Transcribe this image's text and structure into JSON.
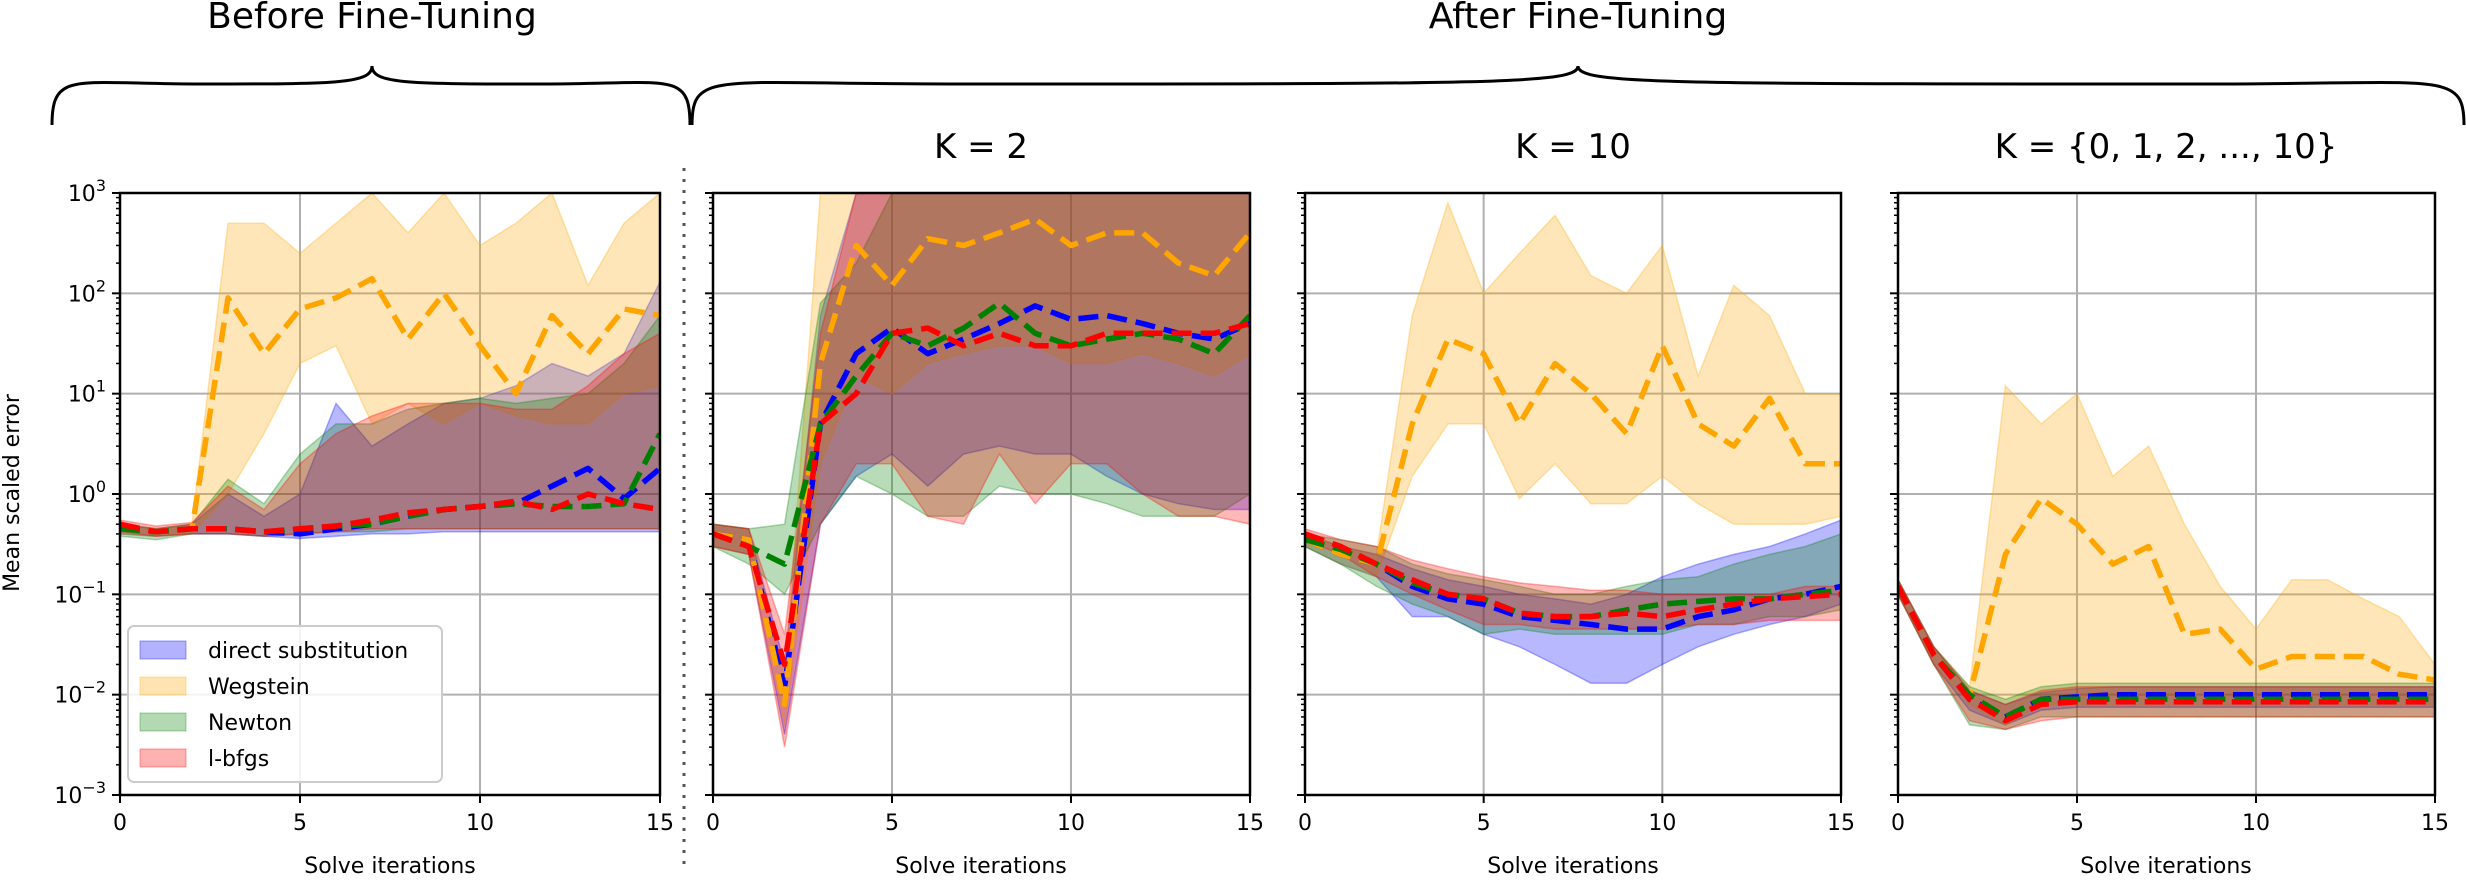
{
  "groups": {
    "before_label": "Before Fine-Tuning",
    "after_label": "After Fine-Tuning"
  },
  "legend": [
    {
      "key": "ds",
      "label": "direct substitution"
    },
    {
      "key": "wg",
      "label": "Wegstein"
    },
    {
      "key": "nt",
      "label": "Newton"
    },
    {
      "key": "lb",
      "label": "l-bfgs"
    }
  ],
  "colors": {
    "ds": "#0000ff",
    "wg": "#ffa500",
    "nt": "#008000",
    "lb": "#ff0000"
  },
  "chart_data": [
    {
      "type": "line",
      "title": "",
      "xlabel": "Solve iterations",
      "ylabel": "Mean scaled error",
      "yscale": "log",
      "xlim": [
        0,
        15
      ],
      "ylim": [
        0.001,
        1000
      ],
      "xticks": [
        "0",
        "5",
        "10",
        "15"
      ],
      "yticks": [
        "10⁻³",
        "10⁻²",
        "10⁻¹",
        "10⁰",
        "10¹",
        "10²",
        "10³"
      ],
      "x": [
        0,
        1,
        2,
        3,
        4,
        5,
        6,
        7,
        8,
        9,
        10,
        11,
        12,
        13,
        14,
        15
      ],
      "series": [
        {
          "name": "direct substitution",
          "key": "ds",
          "mean": [
            0.45,
            0.42,
            0.45,
            0.45,
            0.42,
            0.4,
            0.45,
            0.5,
            0.6,
            0.7,
            0.75,
            0.8,
            1.2,
            1.8,
            0.9,
            1.8
          ],
          "lower": [
            0.4,
            0.38,
            0.4,
            0.4,
            0.38,
            0.36,
            0.38,
            0.4,
            0.4,
            0.42,
            0.42,
            0.42,
            0.42,
            0.42,
            0.42,
            0.42
          ],
          "upper": [
            0.5,
            0.45,
            0.5,
            1.0,
            0.6,
            1.0,
            8.0,
            3.0,
            5.0,
            8.0,
            9.0,
            12.0,
            20.0,
            15.0,
            25.0,
            130.0
          ]
        },
        {
          "name": "Wegstein",
          "key": "wg",
          "mean": [
            0.45,
            0.42,
            0.45,
            90,
            25,
            70,
            90,
            140,
            35,
            100,
            30,
            10,
            60,
            25,
            70,
            60
          ],
          "lower": [
            0.4,
            0.38,
            0.4,
            1.0,
            4.0,
            20,
            30,
            5,
            8,
            5,
            8,
            6,
            5,
            5,
            10,
            12
          ],
          "upper": [
            0.5,
            0.45,
            0.5,
            500,
            500,
            250,
            500,
            1000,
            400,
            1000,
            300,
            500,
            1000,
            120,
            500,
            1000
          ]
        },
        {
          "name": "Newton",
          "key": "nt",
          "mean": [
            0.45,
            0.42,
            0.45,
            0.45,
            0.42,
            0.45,
            0.48,
            0.5,
            0.6,
            0.7,
            0.75,
            0.8,
            0.75,
            0.75,
            0.8,
            4.0
          ],
          "lower": [
            0.38,
            0.35,
            0.4,
            0.4,
            0.38,
            0.4,
            0.42,
            0.42,
            0.45,
            0.45,
            0.45,
            0.45,
            0.45,
            0.45,
            0.45,
            0.45
          ],
          "upper": [
            0.5,
            0.45,
            0.5,
            1.4,
            0.8,
            2.5,
            5.0,
            5.0,
            7.0,
            8.0,
            9.0,
            8.0,
            9.0,
            10,
            20,
            60
          ]
        },
        {
          "name": "l-bfgs",
          "key": "lb",
          "mean": [
            0.5,
            0.42,
            0.45,
            0.45,
            0.42,
            0.45,
            0.48,
            0.55,
            0.65,
            0.7,
            0.75,
            0.85,
            0.7,
            1.0,
            0.8,
            0.7
          ],
          "lower": [
            0.42,
            0.38,
            0.4,
            0.4,
            0.38,
            0.4,
            0.42,
            0.45,
            0.45,
            0.45,
            0.45,
            0.45,
            0.45,
            0.45,
            0.45,
            0.45
          ],
          "upper": [
            0.55,
            0.48,
            0.52,
            1.2,
            0.7,
            2.0,
            4.0,
            6.0,
            8.0,
            8.0,
            8.0,
            7.0,
            7.0,
            12,
            25,
            40
          ]
        }
      ]
    },
    {
      "type": "line",
      "title": "K = 2",
      "xlabel": "Solve iterations",
      "ylabel": "",
      "yscale": "log",
      "xlim": [
        0,
        15
      ],
      "ylim": [
        0.001,
        1000
      ],
      "xticks": [
        "0",
        "5",
        "10",
        "15"
      ],
      "x": [
        0,
        1,
        2,
        3,
        4,
        5,
        6,
        7,
        8,
        9,
        10,
        11,
        12,
        13,
        14,
        15
      ],
      "series": [
        {
          "name": "direct substitution",
          "key": "ds",
          "mean": [
            0.4,
            0.35,
            0.012,
            5,
            25,
            45,
            25,
            35,
            50,
            75,
            55,
            60,
            50,
            40,
            35,
            50
          ],
          "lower": [
            0.3,
            0.25,
            0.004,
            0.5,
            1.5,
            2.5,
            1.2,
            2.5,
            3,
            2.5,
            2.5,
            1.5,
            1.0,
            0.8,
            0.7,
            0.7
          ],
          "upper": [
            0.5,
            0.45,
            0.02,
            60,
            1000,
            1000,
            1000,
            1000,
            1000,
            1000,
            1000,
            1000,
            1000,
            1000,
            1000,
            1000
          ]
        },
        {
          "name": "Wegstein",
          "key": "wg",
          "mean": [
            0.4,
            0.35,
            0.008,
            20,
            300,
            120,
            350,
            300,
            400,
            550,
            300,
            400,
            400,
            200,
            150,
            400
          ],
          "lower": [
            0.3,
            0.25,
            0.005,
            2,
            15,
            10,
            20,
            25,
            30,
            30,
            20,
            20,
            25,
            20,
            15,
            25
          ],
          "upper": [
            0.5,
            0.45,
            0.015,
            1000,
            1000,
            1000,
            1000,
            1000,
            1000,
            1000,
            1000,
            1000,
            1000,
            1000,
            1000,
            1000
          ]
        },
        {
          "name": "Newton",
          "key": "nt",
          "mean": [
            0.4,
            0.3,
            0.2,
            5,
            15,
            40,
            30,
            45,
            80,
            40,
            30,
            35,
            40,
            35,
            25,
            60
          ],
          "lower": [
            0.3,
            0.2,
            0.1,
            0.5,
            1.5,
            1.0,
            0.6,
            0.6,
            1.2,
            1.0,
            1.0,
            0.8,
            0.6,
            0.6,
            0.6,
            1.0
          ],
          "upper": [
            0.5,
            0.45,
            0.5,
            80,
            200,
            1000,
            1000,
            1000,
            1000,
            1000,
            1000,
            1000,
            1000,
            1000,
            1000,
            1000
          ]
        },
        {
          "name": "l-bfgs",
          "key": "lb",
          "mean": [
            0.4,
            0.3,
            0.02,
            5,
            10,
            40,
            45,
            30,
            40,
            30,
            30,
            40,
            40,
            40,
            40,
            50
          ],
          "lower": [
            0.3,
            0.25,
            0.003,
            0.5,
            2,
            2,
            0.6,
            0.5,
            2.5,
            0.8,
            2.0,
            2.0,
            1.0,
            0.6,
            0.6,
            0.5
          ],
          "upper": [
            0.5,
            0.45,
            0.04,
            40,
            1000,
            1000,
            1000,
            1000,
            1000,
            1000,
            1000,
            1000,
            1000,
            1000,
            1000,
            1000
          ]
        }
      ]
    },
    {
      "type": "line",
      "title": "K = 10",
      "xlabel": "Solve iterations",
      "ylabel": "",
      "yscale": "log",
      "xlim": [
        0,
        15
      ],
      "ylim": [
        0.001,
        1000
      ],
      "xticks": [
        "0",
        "5",
        "10",
        "15"
      ],
      "x": [
        0,
        1,
        2,
        3,
        4,
        5,
        6,
        7,
        8,
        9,
        10,
        11,
        12,
        13,
        14,
        15
      ],
      "series": [
        {
          "name": "direct substitution",
          "key": "ds",
          "mean": [
            0.35,
            0.25,
            0.2,
            0.12,
            0.09,
            0.08,
            0.06,
            0.055,
            0.05,
            0.045,
            0.045,
            0.06,
            0.07,
            0.09,
            0.1,
            0.12
          ],
          "lower": [
            0.3,
            0.2,
            0.15,
            0.06,
            0.06,
            0.04,
            0.03,
            0.02,
            0.013,
            0.013,
            0.02,
            0.03,
            0.04,
            0.05,
            0.06,
            0.08
          ],
          "upper": [
            0.4,
            0.3,
            0.25,
            0.18,
            0.14,
            0.12,
            0.1,
            0.09,
            0.08,
            0.1,
            0.15,
            0.2,
            0.25,
            0.3,
            0.4,
            0.55
          ]
        },
        {
          "name": "Wegstein",
          "key": "wg",
          "mean": [
            0.35,
            0.25,
            0.2,
            5,
            35,
            25,
            5,
            20,
            10,
            4,
            30,
            5,
            3,
            9,
            2,
            2
          ],
          "lower": [
            0.3,
            0.2,
            0.15,
            1.5,
            5,
            5,
            0.9,
            2,
            0.8,
            0.8,
            1.5,
            0.8,
            0.5,
            0.5,
            0.5,
            0.6
          ],
          "upper": [
            0.4,
            0.3,
            0.25,
            60,
            800,
            100,
            250,
            600,
            150,
            100,
            300,
            15,
            120,
            60,
            10,
            10
          ]
        },
        {
          "name": "Newton",
          "key": "nt",
          "mean": [
            0.35,
            0.28,
            0.2,
            0.13,
            0.1,
            0.09,
            0.065,
            0.06,
            0.06,
            0.07,
            0.08,
            0.085,
            0.09,
            0.09,
            0.1,
            0.11
          ],
          "lower": [
            0.3,
            0.2,
            0.12,
            0.08,
            0.06,
            0.04,
            0.045,
            0.04,
            0.04,
            0.04,
            0.04,
            0.05,
            0.05,
            0.06,
            0.06,
            0.07
          ],
          "upper": [
            0.4,
            0.35,
            0.3,
            0.2,
            0.16,
            0.14,
            0.12,
            0.1,
            0.1,
            0.12,
            0.14,
            0.15,
            0.2,
            0.25,
            0.3,
            0.4
          ]
        },
        {
          "name": "l-bfgs",
          "key": "lb",
          "mean": [
            0.4,
            0.3,
            0.2,
            0.14,
            0.1,
            0.09,
            0.065,
            0.06,
            0.06,
            0.065,
            0.06,
            0.07,
            0.08,
            0.09,
            0.095,
            0.1
          ],
          "lower": [
            0.35,
            0.25,
            0.15,
            0.1,
            0.07,
            0.05,
            0.05,
            0.045,
            0.045,
            0.045,
            0.045,
            0.05,
            0.05,
            0.055,
            0.055,
            0.055
          ],
          "upper": [
            0.45,
            0.35,
            0.3,
            0.22,
            0.18,
            0.15,
            0.13,
            0.12,
            0.11,
            0.11,
            0.1,
            0.1,
            0.1,
            0.1,
            0.12,
            0.12
          ]
        }
      ]
    },
    {
      "type": "line",
      "title": "K = {0, 1, 2, ..., 10}",
      "xlabel": "Solve iterations",
      "ylabel": "",
      "yscale": "log",
      "xlim": [
        0,
        15
      ],
      "ylim": [
        0.001,
        1000
      ],
      "xticks": [
        "0",
        "5",
        "10",
        "15"
      ],
      "x": [
        0,
        1,
        2,
        3,
        4,
        5,
        6,
        7,
        8,
        9,
        10,
        11,
        12,
        13,
        14,
        15
      ],
      "series": [
        {
          "name": "direct substitution",
          "key": "ds",
          "mean": [
            0.12,
            0.025,
            0.009,
            0.006,
            0.009,
            0.0095,
            0.01,
            0.01,
            0.01,
            0.01,
            0.01,
            0.01,
            0.01,
            0.01,
            0.01,
            0.01
          ],
          "lower": [
            0.1,
            0.02,
            0.007,
            0.005,
            0.007,
            0.0075,
            0.0075,
            0.0075,
            0.0075,
            0.0075,
            0.0075,
            0.0075,
            0.0075,
            0.0075,
            0.0075,
            0.0075
          ],
          "upper": [
            0.14,
            0.03,
            0.011,
            0.008,
            0.0105,
            0.0115,
            0.012,
            0.012,
            0.012,
            0.012,
            0.012,
            0.012,
            0.012,
            0.012,
            0.012,
            0.012
          ]
        },
        {
          "name": "Wegstein",
          "key": "wg",
          "mean": [
            0.12,
            0.025,
            0.01,
            0.25,
            0.9,
            0.5,
            0.2,
            0.3,
            0.04,
            0.045,
            0.018,
            0.024,
            0.024,
            0.024,
            0.016,
            0.014
          ],
          "lower": [
            0.1,
            0.02,
            0.008,
            0.005,
            0.008,
            0.008,
            0.008,
            0.008,
            0.008,
            0.008,
            0.008,
            0.008,
            0.008,
            0.008,
            0.008,
            0.008
          ],
          "upper": [
            0.14,
            0.03,
            0.012,
            12,
            5,
            10,
            1.5,
            3,
            0.5,
            0.12,
            0.045,
            0.14,
            0.14,
            0.09,
            0.06,
            0.02
          ]
        },
        {
          "name": "Newton",
          "key": "nt",
          "mean": [
            0.12,
            0.025,
            0.01,
            0.006,
            0.009,
            0.009,
            0.009,
            0.009,
            0.009,
            0.009,
            0.009,
            0.009,
            0.009,
            0.009,
            0.009,
            0.009
          ],
          "lower": [
            0.1,
            0.02,
            0.005,
            0.0045,
            0.006,
            0.006,
            0.006,
            0.006,
            0.006,
            0.006,
            0.006,
            0.006,
            0.006,
            0.006,
            0.006,
            0.006
          ],
          "upper": [
            0.14,
            0.03,
            0.012,
            0.009,
            0.012,
            0.013,
            0.013,
            0.013,
            0.013,
            0.013,
            0.013,
            0.013,
            0.013,
            0.013,
            0.013,
            0.013
          ]
        },
        {
          "name": "l-bfgs",
          "key": "lb",
          "mean": [
            0.12,
            0.025,
            0.009,
            0.0055,
            0.008,
            0.0085,
            0.0085,
            0.0085,
            0.0085,
            0.0085,
            0.0085,
            0.0085,
            0.0085,
            0.0085,
            0.0085,
            0.0085
          ],
          "lower": [
            0.1,
            0.02,
            0.0055,
            0.0045,
            0.0055,
            0.006,
            0.006,
            0.006,
            0.006,
            0.006,
            0.006,
            0.006,
            0.006,
            0.006,
            0.006,
            0.006
          ],
          "upper": [
            0.14,
            0.03,
            0.011,
            0.008,
            0.011,
            0.012,
            0.012,
            0.012,
            0.012,
            0.012,
            0.012,
            0.012,
            0.012,
            0.012,
            0.012,
            0.012
          ]
        }
      ]
    }
  ]
}
